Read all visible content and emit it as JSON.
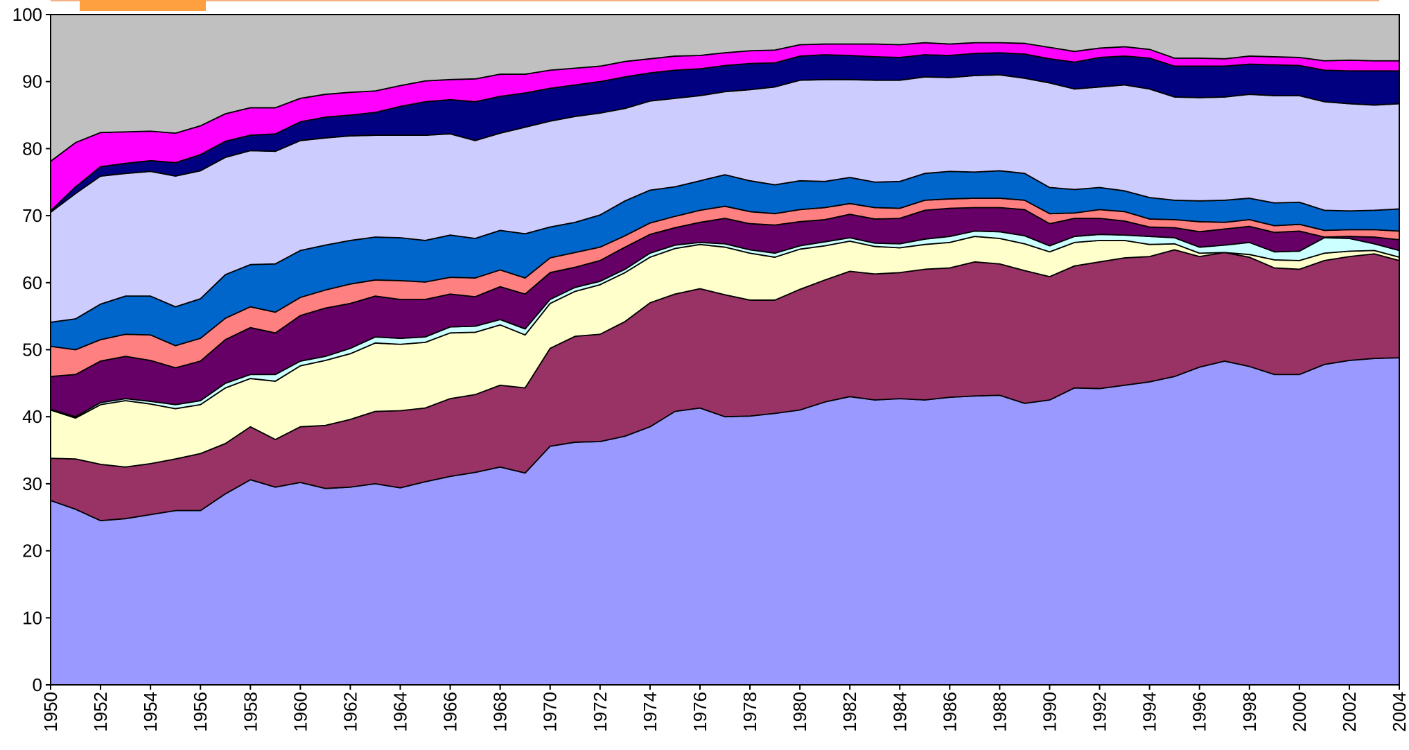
{
  "chart_data": {
    "type": "stacked_area",
    "x": [
      1950,
      1951,
      1952,
      1953,
      1954,
      1955,
      1956,
      1957,
      1958,
      1959,
      1960,
      1961,
      1962,
      1963,
      1964,
      1965,
      1966,
      1967,
      1968,
      1969,
      1970,
      1971,
      1972,
      1973,
      1974,
      1975,
      1976,
      1977,
      1978,
      1979,
      1980,
      1981,
      1982,
      1983,
      1984,
      1985,
      1986,
      1987,
      1988,
      1989,
      1990,
      1991,
      1992,
      1993,
      1994,
      1995,
      1996,
      1997,
      1998,
      1999,
      2000,
      2001,
      2002,
      2003,
      2004
    ],
    "xlim": [
      1950,
      2004
    ],
    "xticks": [
      1950,
      1952,
      1954,
      1956,
      1958,
      1960,
      1962,
      1964,
      1966,
      1968,
      1970,
      1972,
      1974,
      1976,
      1978,
      1980,
      1982,
      1984,
      1986,
      1988,
      1990,
      1992,
      1994,
      1996,
      1998,
      2000,
      2002,
      2004
    ],
    "ylim": [
      0,
      100
    ],
    "yticks": [
      0,
      10,
      20,
      30,
      40,
      50,
      60,
      70,
      80,
      90,
      100
    ],
    "grid": false,
    "series": [
      {
        "color": "#9999ff",
        "values": [
          27.5,
          26.2,
          24.5,
          24.8,
          25.4,
          26,
          26,
          28.5,
          30.6,
          29.5,
          30.2,
          29.3,
          29.5,
          30,
          29.4,
          30.3,
          31.1,
          31.7,
          32.5,
          31.6,
          35.6,
          36.2,
          36.3,
          37.1,
          38.5,
          40.8,
          41.3,
          40,
          40.1,
          40.5,
          41,
          42.2,
          43,
          42.5,
          42.7,
          42.5,
          42.9,
          43.1,
          43.2,
          42,
          42.5,
          44.3,
          44.2,
          44.7,
          45.2,
          46,
          47.4,
          48.3,
          47.5,
          46.3,
          46.3,
          47.8,
          48.4,
          48.7,
          48.8
        ]
      },
      {
        "color": "#993366",
        "values": [
          6.3,
          7.5,
          8.4,
          7.7,
          7.6,
          7.7,
          8.5,
          7.5,
          7.9,
          7.1,
          8.3,
          9.4,
          10.1,
          10.8,
          11.5,
          11,
          11.6,
          11.6,
          12.2,
          12.7,
          14.6,
          15.8,
          16,
          17.1,
          18.5,
          17.5,
          17.8,
          18.2,
          17.3,
          16.9,
          18,
          18.2,
          18.7,
          18.8,
          18.8,
          19.5,
          19.3,
          20,
          19.6,
          19.8,
          18.4,
          18.2,
          18.9,
          19,
          18.7,
          18.9,
          16.5,
          16.2,
          16.3,
          15.9,
          15.7,
          15.5,
          15.5,
          15.6,
          14.5
        ]
      },
      {
        "color": "#ffffcc",
        "values": [
          7.2,
          6.1,
          8.9,
          9.9,
          8.9,
          7.5,
          7.3,
          8.3,
          7.2,
          8.7,
          9.1,
          9.7,
          9.8,
          10.2,
          9.9,
          9.8,
          9.8,
          9.3,
          9,
          7.9,
          6.7,
          6.7,
          7.4,
          7.3,
          6.8,
          6.8,
          6.6,
          7.1,
          7,
          6.4,
          6,
          5.1,
          4.5,
          4.1,
          3.7,
          3.7,
          3.8,
          3.8,
          3.8,
          4,
          3.7,
          3.5,
          3.2,
          2.6,
          1.8,
          0.9,
          0.5,
          0,
          0.4,
          1.2,
          1.3,
          1.1,
          0.8,
          0.5,
          0.5
        ]
      },
      {
        "color": "#ccffff",
        "values": [
          0.1,
          0.2,
          0.3,
          0.3,
          0.4,
          0.6,
          0.6,
          0.7,
          0.6,
          1,
          0.7,
          0.6,
          0.8,
          0.9,
          0.9,
          0.8,
          0.9,
          0.9,
          0.8,
          0.9,
          0.6,
          0.6,
          0.5,
          0.5,
          0.6,
          0.5,
          0.3,
          0.5,
          0.5,
          0.6,
          0.5,
          0.6,
          0.5,
          0.5,
          0.6,
          0.8,
          0.9,
          0.8,
          1,
          1.2,
          0.9,
          0.9,
          0.9,
          0.8,
          1.2,
          0.9,
          0.9,
          1.1,
          1.8,
          1.2,
          1.4,
          2.3,
          1.9,
          1,
          1
        ]
      },
      {
        "color": "#660066",
        "values": [
          4.9,
          6.3,
          6.2,
          6.3,
          6.1,
          5.5,
          5.9,
          6.5,
          7,
          6.2,
          6.8,
          7.2,
          6.7,
          6.1,
          5.8,
          5.6,
          4.9,
          4.4,
          4.9,
          5.2,
          4,
          3,
          3.1,
          3.3,
          2.8,
          2.6,
          3,
          3.8,
          3.9,
          4.2,
          3.6,
          3.3,
          3.5,
          3.6,
          3.8,
          4.3,
          4.2,
          3.5,
          3.6,
          3.9,
          3.3,
          2.7,
          2.4,
          2.1,
          1.4,
          1.5,
          2.3,
          2.4,
          2.4,
          2.9,
          3,
          0.1,
          0.3,
          1,
          1.6
        ]
      },
      {
        "color": "#ff8080",
        "values": [
          4.5,
          3.7,
          3.2,
          3.3,
          3.8,
          3.3,
          3.4,
          3.2,
          3.1,
          3.1,
          2.7,
          2.7,
          2.9,
          2.4,
          2.8,
          2.6,
          2.5,
          2.8,
          2.5,
          2.4,
          2.2,
          2.2,
          2,
          1.7,
          1.7,
          1.7,
          1.8,
          1.8,
          1.8,
          1.7,
          1.8,
          1.8,
          1.6,
          1.7,
          1.5,
          1.5,
          1.4,
          1.4,
          1.4,
          1.4,
          1.5,
          0.8,
          1.3,
          1.4,
          1.2,
          1.2,
          1.5,
          1,
          1,
          1,
          1,
          1,
          1,
          1.1,
          1.3
        ]
      },
      {
        "color": "#0066cc",
        "values": [
          3.6,
          4.6,
          5.3,
          5.7,
          5.8,
          5.8,
          5.9,
          6.5,
          6.3,
          7.2,
          7,
          6.7,
          6.5,
          6.4,
          6.4,
          6.2,
          6.3,
          5.9,
          5.9,
          6.6,
          4.6,
          4.5,
          4.8,
          5.2,
          4.9,
          4.4,
          4.4,
          4.7,
          4.6,
          4.3,
          4.3,
          3.9,
          3.9,
          3.8,
          4,
          4,
          4.1,
          3.9,
          4.1,
          4,
          3.9,
          3.5,
          3.3,
          3.1,
          3.2,
          2.9,
          3.1,
          3.3,
          3.2,
          3.4,
          3.3,
          3,
          2.8,
          2.9,
          3.3
        ]
      },
      {
        "color": "#ccccff",
        "values": [
          16.4,
          18.7,
          19.1,
          18.3,
          18.6,
          19.5,
          19.1,
          17.5,
          17,
          16.8,
          16.4,
          16,
          15.6,
          15.2,
          15.3,
          15.7,
          15.1,
          14.6,
          14.5,
          15.9,
          15.8,
          15.8,
          15.2,
          13.8,
          13.3,
          13.2,
          12.7,
          12.4,
          13.6,
          14.6,
          15,
          15.2,
          14.6,
          15.2,
          15.1,
          14.4,
          14,
          14.4,
          14.3,
          14.2,
          15.6,
          15,
          15,
          15.8,
          16.2,
          15.4,
          15.4,
          15.4,
          15.5,
          16,
          15.9,
          16.2,
          16,
          15.7,
          15.7
        ]
      },
      {
        "color": "#000080",
        "values": [
          0.2,
          1,
          1.4,
          1.5,
          1.6,
          2,
          2.4,
          2.4,
          2.3,
          2.6,
          2.8,
          3.1,
          3.1,
          3.4,
          4.3,
          5,
          5.1,
          5.8,
          5.5,
          5.1,
          4.9,
          4.7,
          4.7,
          4.7,
          4.2,
          4.2,
          4,
          3.9,
          3.9,
          3.6,
          3.6,
          3.7,
          3.6,
          3.5,
          3.4,
          3.3,
          3.3,
          3.3,
          3.3,
          3.6,
          3.6,
          4,
          4.4,
          4.3,
          4.6,
          4.6,
          4.7,
          4.6,
          4.5,
          4.6,
          4.5,
          4.7,
          4.9,
          5.1,
          4.9
        ]
      },
      {
        "color": "#ff00ff",
        "values": [
          7.4,
          6.6,
          5.1,
          4.7,
          4.4,
          4.4,
          4.3,
          4.1,
          4.1,
          3.9,
          3.5,
          3.4,
          3.4,
          3.2,
          3.1,
          3.1,
          3,
          3.4,
          3.3,
          2.8,
          2.7,
          2.5,
          2.3,
          2.3,
          2.1,
          2.1,
          2,
          1.9,
          1.9,
          1.9,
          1.7,
          1.6,
          1.7,
          1.9,
          1.9,
          1.8,
          1.7,
          1.6,
          1.5,
          1.6,
          1.7,
          1.6,
          1.4,
          1.4,
          1.3,
          1.2,
          1.2,
          1.1,
          1.2,
          1.2,
          1.2,
          1.4,
          1.6,
          1.5,
          1.5
        ]
      },
      {
        "color": "#c0c0c0",
        "values": [
          21.9,
          19.1,
          17.6,
          17.5,
          17.4,
          17.7,
          16.6,
          14.8,
          13.9,
          13.9,
          12.5,
          11.9,
          11.6,
          11.4,
          10.6,
          9.9,
          9.7,
          9.6,
          8.9,
          8.9,
          8.3,
          8,
          7.7,
          7,
          6.6,
          6.2,
          6.1,
          5.7,
          5.4,
          5.3,
          4.5,
          4.4,
          4.4,
          4.4,
          4.5,
          4.2,
          4.4,
          4.2,
          4.2,
          4.3,
          4.9,
          5.5,
          5,
          4.8,
          5.2,
          6.5,
          6.5,
          6.6,
          6.2,
          6.3,
          6.4,
          6.9,
          6.8,
          6.9,
          6.9
        ]
      }
    ]
  }
}
